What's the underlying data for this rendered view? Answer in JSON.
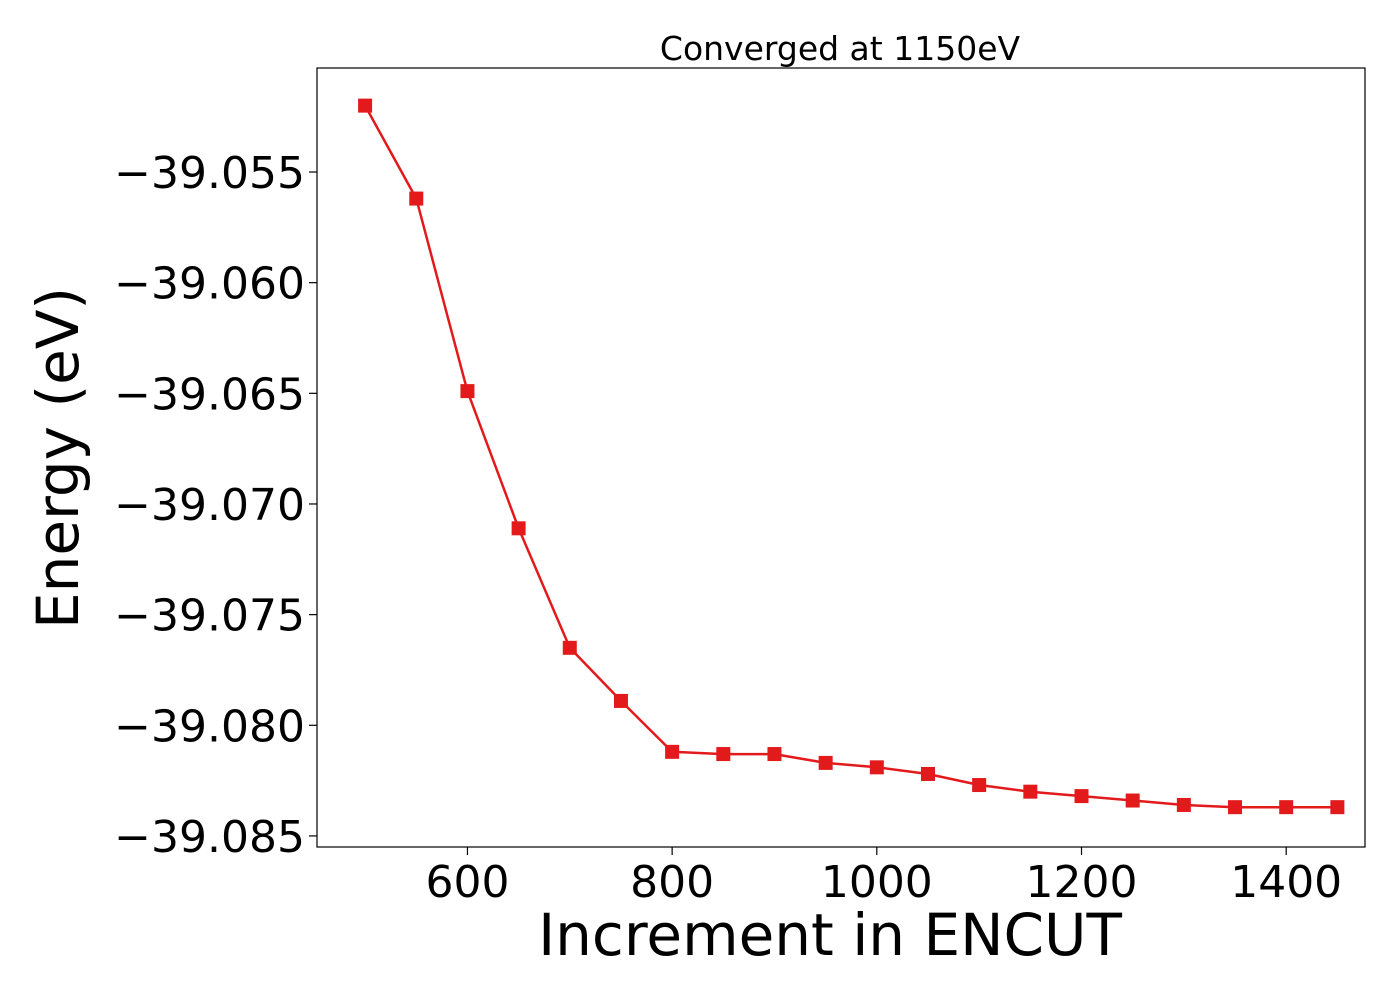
{
  "chart_data": {
    "type": "line",
    "title": "Converged at 1150eV",
    "xlabel": "Increment in ENCUT",
    "ylabel": "Energy (eV)",
    "xlim": [
      453,
      1477
    ],
    "ylim": [
      -39.0855,
      -39.0503
    ],
    "xticks": [
      600,
      800,
      1000,
      1200,
      1400
    ],
    "xtick_labels": [
      "600",
      "800",
      "1000",
      "1200",
      "1400"
    ],
    "yticks": [
      -39.055,
      -39.06,
      -39.065,
      -39.07,
      -39.075,
      -39.08,
      -39.085
    ],
    "ytick_labels": [
      "−39.055",
      "−39.060",
      "−39.065",
      "−39.070",
      "−39.075",
      "−39.080",
      "−39.085"
    ],
    "grid": false,
    "series": [
      {
        "color": "#e31a1c",
        "marker": "square",
        "x": [
          500,
          550,
          600,
          650,
          700,
          750,
          800,
          850,
          900,
          950,
          1000,
          1050,
          1100,
          1150,
          1200,
          1250,
          1300,
          1350,
          1400,
          1450
        ],
        "y": [
          -39.052,
          -39.0562,
          -39.0649,
          -39.0711,
          -39.0765,
          -39.0789,
          -39.0812,
          -39.0813,
          -39.0813,
          -39.0817,
          -39.0819,
          -39.0822,
          -39.0827,
          -39.083,
          -39.0832,
          -39.0834,
          -39.0836,
          -39.0837,
          -39.0837,
          -39.0837
        ]
      }
    ]
  }
}
